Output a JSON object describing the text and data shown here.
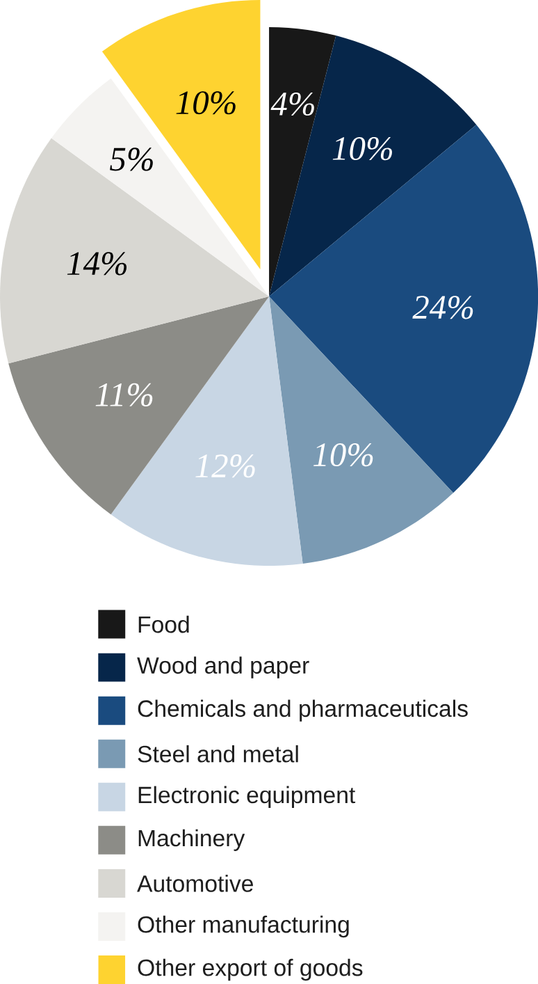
{
  "chart_data": {
    "type": "pie",
    "categories": [
      "Food",
      "Wood and paper",
      "Chemicals and pharmaceuticals",
      "Steel and metal",
      "Electronic equipment",
      "Machinery",
      "Automotive",
      "Other manufacturing",
      "Other export of goods"
    ],
    "values": [
      4,
      10,
      24,
      10,
      12,
      11,
      14,
      5,
      10
    ],
    "value_labels": [
      "4%",
      "10%",
      "24%",
      "10%",
      "12%",
      "11%",
      "14%",
      "5%",
      "10%"
    ],
    "colors": [
      "#181818",
      "#06264a",
      "#1a4b7f",
      "#7a9ab3",
      "#c8d6e4",
      "#8c8c87",
      "#d8d7d2",
      "#f4f3f1",
      "#fed330"
    ],
    "legend": "bottom"
  }
}
